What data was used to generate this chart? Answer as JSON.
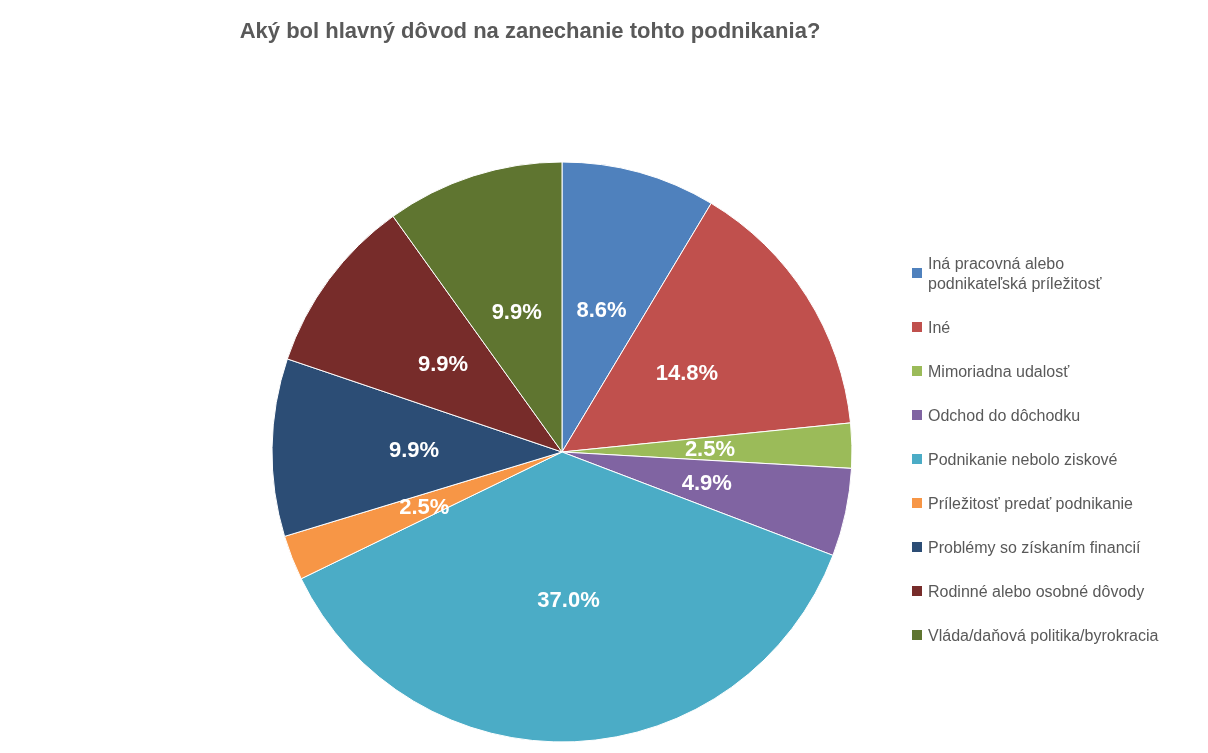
{
  "chart_data": {
    "type": "pie",
    "title": "Aký bol hlavný dôvod na zanechanie tohto podnikania?",
    "categories": [
      "Iná pracovná alebo podnikateľská príležitosť",
      "Iné",
      "Mimoriadna udalosť",
      "Odchod do dôchodku",
      "Podnikanie nebolo ziskové",
      "Príležitosť predať podnikanie",
      "Problémy so získaním financií",
      "Rodinné alebo osobné dôvody",
      "Vláda/daňová politika/byrokracia"
    ],
    "values": [
      8.6,
      14.8,
      2.5,
      4.9,
      37.0,
      2.5,
      9.9,
      9.9,
      9.9
    ],
    "value_labels": [
      "8.6%",
      "14.8%",
      "2.5%",
      "4.9%",
      "37.0%",
      "2.5%",
      "9.9%",
      "9.9%",
      "9.9%"
    ],
    "colors": [
      "#4f81bd",
      "#c0504d",
      "#9bbb59",
      "#8064a2",
      "#4bacc6",
      "#f79646",
      "#2c4d75",
      "#772c2a",
      "#5f7530"
    ],
    "legend": "right"
  }
}
